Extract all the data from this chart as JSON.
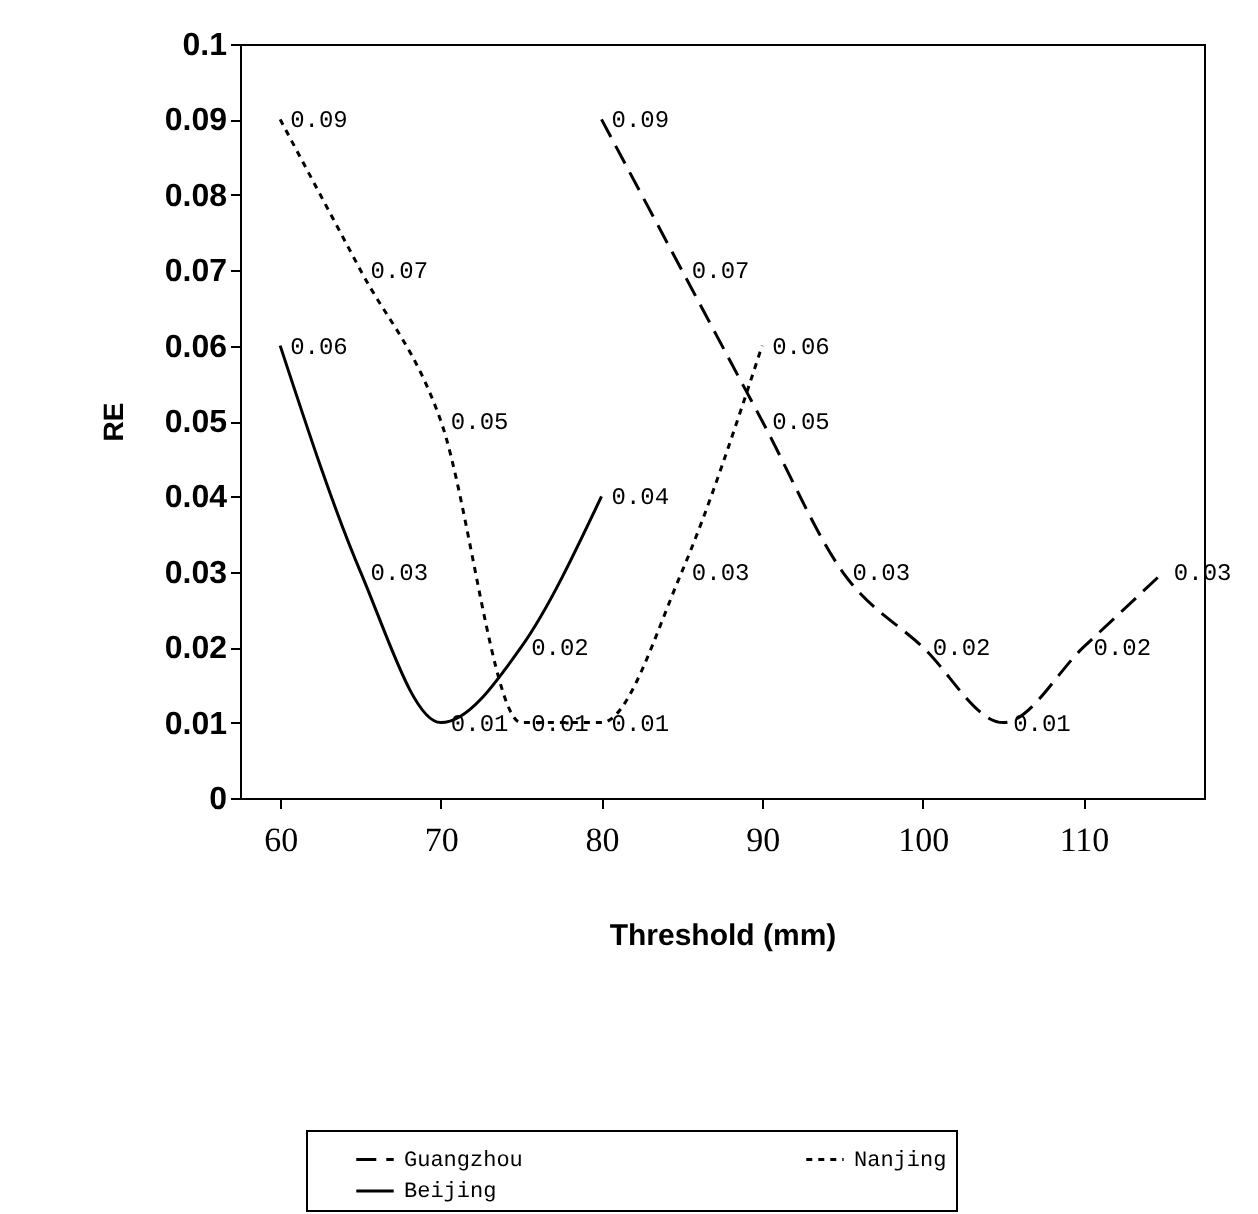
{
  "chart_data": {
    "type": "line",
    "xlabel": "Threshold (mm)",
    "ylabel": "RE",
    "xlim": [
      57.5,
      117.5
    ],
    "xticks": [
      60,
      70,
      80,
      90,
      100,
      110
    ],
    "ylim": [
      0,
      0.1
    ],
    "yticks": [
      0,
      0.01,
      0.02,
      0.03,
      0.04,
      0.05,
      0.06,
      0.07,
      0.08,
      0.09,
      0.1
    ],
    "data_labels": true,
    "legend": "bottom",
    "grid": false,
    "marker": "none",
    "series": [
      {
        "name": "Guangzhou",
        "color": "#000000",
        "line_style": "dashed",
        "x": [
          80,
          85,
          90,
          95,
          100,
          105,
          110,
          115
        ],
        "values": [
          0.09,
          0.07,
          0.05,
          0.03,
          0.02,
          0.01,
          0.02,
          0.03
        ]
      },
      {
        "name": "Nanjing",
        "color": "#000000",
        "line_style": "dotted",
        "x": [
          60,
          65,
          70,
          75,
          80,
          85,
          90
        ],
        "values": [
          0.09,
          0.07,
          0.05,
          0.01,
          0.01,
          0.03,
          0.06
        ]
      },
      {
        "name": "Beijing",
        "color": "#000000",
        "line_style": "solid",
        "x": [
          60,
          65,
          70,
          75,
          80
        ],
        "values": [
          0.06,
          0.03,
          0.01,
          0.02,
          0.04
        ]
      }
    ]
  }
}
